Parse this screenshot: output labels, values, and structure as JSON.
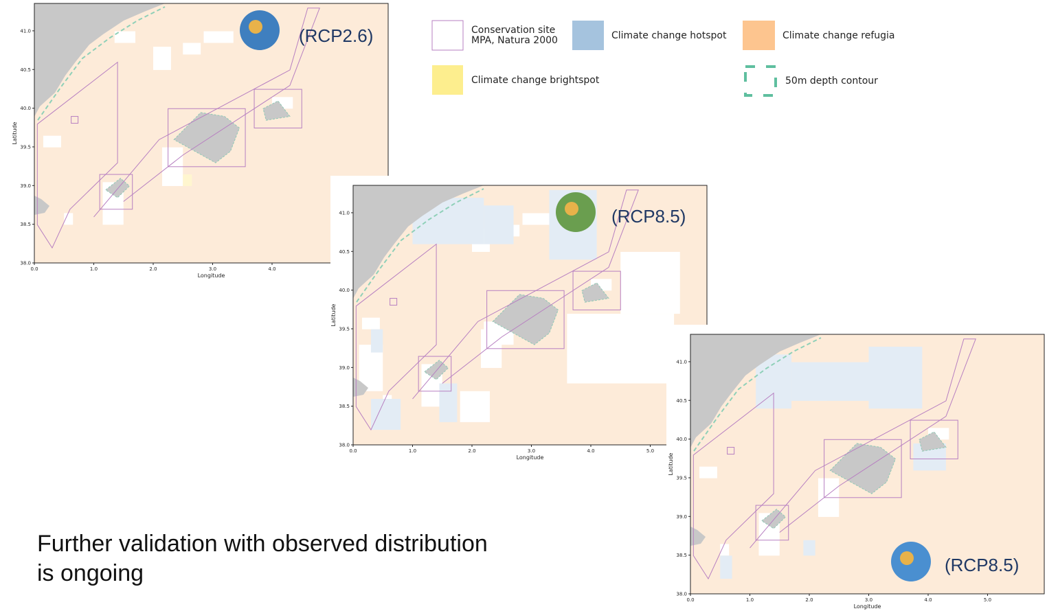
{
  "legend": {
    "items": [
      {
        "label": "Conservation site\nMPA, Natura 2000"
      },
      {
        "label": "Climate change hotspot"
      },
      {
        "label": "Climate change refugia"
      },
      {
        "label": "Climate change brightspot"
      },
      {
        "label": "50m depth contour"
      }
    ]
  },
  "panels": [
    {
      "label": "(RCP2.6)",
      "x_axis_label": "Longitude",
      "y_axis_label": "Latitude",
      "xticks": [
        "0.0",
        "1.0",
        "2.0",
        "3.0",
        "4.0"
      ],
      "yticks": [
        "38.0",
        "38.5",
        "39.0",
        "39.5",
        "40.0",
        "40.5",
        "41.0"
      ]
    },
    {
      "label": "(RCP8.5)",
      "x_axis_label": "Longitude",
      "y_axis_label": "Latitude",
      "xticks": [
        "0.0",
        "1.0",
        "2.0",
        "3.0",
        "4.0",
        "5.0"
      ],
      "yticks": [
        "38.0",
        "38.5",
        "39.0",
        "39.5",
        "40.0",
        "40.5",
        "41.0"
      ]
    },
    {
      "label": "(RCP8.5)",
      "x_axis_label": "Longitude",
      "y_axis_label": "Latitude",
      "xticks": [
        "0.0",
        "1.0",
        "2.0",
        "3.0",
        "4.0",
        "5.0"
      ],
      "yticks": [
        "38.0",
        "38.5",
        "39.0",
        "39.5",
        "40.0",
        "40.5",
        "41.0"
      ]
    }
  ],
  "note": {
    "lines": [
      "Further validation with observed distribution",
      "is ongoing"
    ]
  }
}
